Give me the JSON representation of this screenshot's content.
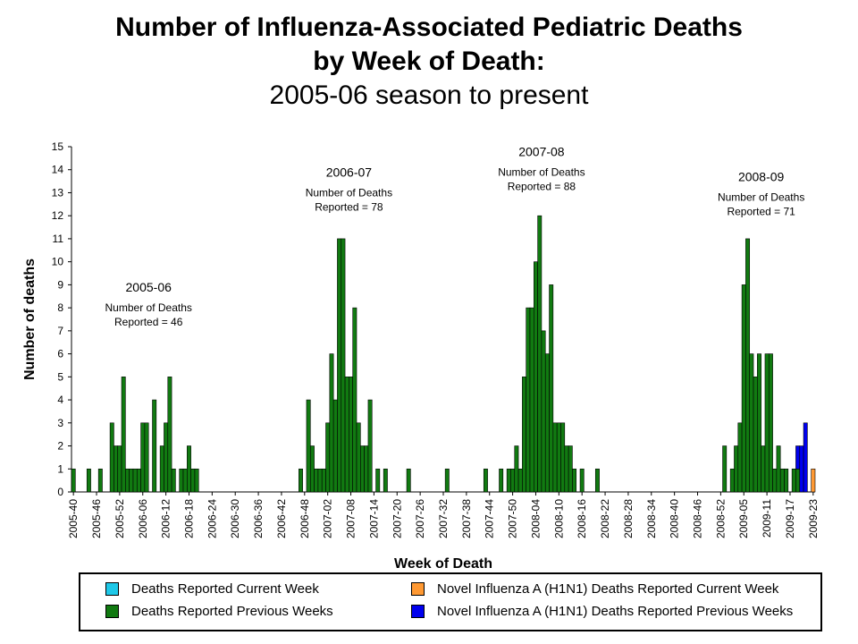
{
  "chart_data": {
    "type": "bar",
    "title": "Number of Influenza-Associated Pediatric Deaths",
    "title_line2": "by Week of Death:",
    "subtitle": "2005-06 season to present",
    "xlabel": "Week of Death",
    "ylabel": "Number of deaths",
    "ylim": [
      0,
      15
    ],
    "yticks": [
      0,
      1,
      2,
      3,
      4,
      5,
      6,
      7,
      8,
      9,
      10,
      11,
      12,
      13,
      14,
      15
    ],
    "start_week": "2005-40",
    "num_weeks": 193,
    "tick_labels": [
      "2005-40",
      "2005-46",
      "2005-52",
      "2006-06",
      "2006-12",
      "2006-18",
      "2006-24",
      "2006-30",
      "2006-36",
      "2006-42",
      "2006-48",
      "2007-02",
      "2007-08",
      "2007-14",
      "2007-20",
      "2007-26",
      "2007-32",
      "2007-38",
      "2007-44",
      "2007-50",
      "2008-04",
      "2008-10",
      "2008-16",
      "2008-22",
      "2008-28",
      "2008-34",
      "2008-40",
      "2008-46",
      "2008-52",
      "2009-05",
      "2009-11",
      "2009-17",
      "2009-23"
    ],
    "series": [
      {
        "name": "Deaths Reported Current Week",
        "color": "#1ec8e8",
        "values": []
      },
      {
        "name": "Deaths Reported Previous Weeks",
        "color": "#117a11",
        "values": [
          1,
          0,
          0,
          0,
          1,
          0,
          0,
          1,
          0,
          0,
          3,
          2,
          2,
          5,
          1,
          1,
          1,
          1,
          3,
          3,
          0,
          4,
          0,
          2,
          3,
          5,
          1,
          0,
          1,
          1,
          2,
          1,
          1,
          0,
          0,
          0,
          0,
          0,
          0,
          0,
          0,
          0,
          0,
          0,
          0,
          0,
          0,
          0,
          0,
          0,
          0,
          0,
          0,
          0,
          0,
          0,
          0,
          0,
          0,
          1,
          0,
          4,
          2,
          1,
          1,
          1,
          3,
          6,
          4,
          11,
          11,
          5,
          5,
          8,
          3,
          2,
          2,
          4,
          0,
          1,
          0,
          1,
          0,
          0,
          0,
          0,
          0,
          1,
          0,
          0,
          0,
          0,
          0,
          0,
          0,
          0,
          0,
          1,
          0,
          0,
          0,
          0,
          0,
          0,
          0,
          0,
          0,
          1,
          0,
          0,
          0,
          1,
          0,
          1,
          1,
          2,
          1,
          5,
          8,
          8,
          10,
          12,
          7,
          6,
          9,
          3,
          3,
          3,
          2,
          2,
          1,
          0,
          1,
          0,
          0,
          0,
          1,
          0,
          0,
          0,
          0,
          0,
          0,
          0,
          0,
          0,
          0,
          0,
          0,
          0,
          0,
          0,
          0,
          0,
          0,
          0,
          0,
          0,
          0,
          0,
          0,
          0,
          0,
          0,
          0,
          0,
          0,
          0,
          0,
          2,
          0,
          1,
          2,
          3,
          9,
          11,
          6,
          5,
          6,
          2,
          6,
          6,
          1,
          2,
          1,
          1,
          0,
          1,
          1,
          0,
          0,
          0,
          0
        ]
      },
      {
        "name": "Novel Influenza A (H1N1) Deaths Reported Current Week",
        "color": "#ff9933",
        "values": [
          0,
          0,
          0,
          0,
          0,
          0,
          0,
          0,
          0,
          0,
          0,
          0,
          0,
          0,
          0,
          0,
          0,
          0,
          0,
          0,
          0,
          0,
          0,
          0,
          0,
          0,
          0,
          0,
          0,
          0,
          0,
          0,
          0,
          0,
          0,
          0,
          0,
          0,
          0,
          0,
          0,
          0,
          0,
          0,
          0,
          0,
          0,
          0,
          0,
          0,
          0,
          0,
          0,
          0,
          0,
          0,
          0,
          0,
          0,
          0,
          0,
          0,
          0,
          0,
          0,
          0,
          0,
          0,
          0,
          0,
          0,
          0,
          0,
          0,
          0,
          0,
          0,
          0,
          0,
          0,
          0,
          0,
          0,
          0,
          0,
          0,
          0,
          0,
          0,
          0,
          0,
          0,
          0,
          0,
          0,
          0,
          0,
          0,
          0,
          0,
          0,
          0,
          0,
          0,
          0,
          0,
          0,
          0,
          0,
          0,
          0,
          0,
          0,
          0,
          0,
          0,
          0,
          0,
          0,
          0,
          0,
          0,
          0,
          0,
          0,
          0,
          0,
          0,
          0,
          0,
          0,
          0,
          0,
          0,
          0,
          0,
          0,
          0,
          0,
          0,
          0,
          0,
          0,
          0,
          0,
          0,
          0,
          0,
          0,
          0,
          0,
          0,
          0,
          0,
          0,
          0,
          0,
          0,
          0,
          0,
          0,
          0,
          0,
          0,
          0,
          0,
          0,
          0,
          0,
          0,
          0,
          0,
          0,
          0,
          0,
          0,
          0,
          0,
          0,
          0,
          0,
          0,
          0,
          0,
          0,
          0,
          0,
          0,
          0,
          0,
          0,
          0,
          1
        ]
      },
      {
        "name": "Novel Influenza A (H1N1) Deaths Reported Previous Weeks",
        "color": "#0000ee",
        "values": [
          0,
          0,
          0,
          0,
          0,
          0,
          0,
          0,
          0,
          0,
          0,
          0,
          0,
          0,
          0,
          0,
          0,
          0,
          0,
          0,
          0,
          0,
          0,
          0,
          0,
          0,
          0,
          0,
          0,
          0,
          0,
          0,
          0,
          0,
          0,
          0,
          0,
          0,
          0,
          0,
          0,
          0,
          0,
          0,
          0,
          0,
          0,
          0,
          0,
          0,
          0,
          0,
          0,
          0,
          0,
          0,
          0,
          0,
          0,
          0,
          0,
          0,
          0,
          0,
          0,
          0,
          0,
          0,
          0,
          0,
          0,
          0,
          0,
          0,
          0,
          0,
          0,
          0,
          0,
          0,
          0,
          0,
          0,
          0,
          0,
          0,
          0,
          0,
          0,
          0,
          0,
          0,
          0,
          0,
          0,
          0,
          0,
          0,
          0,
          0,
          0,
          0,
          0,
          0,
          0,
          0,
          0,
          0,
          0,
          0,
          0,
          0,
          0,
          0,
          0,
          0,
          0,
          0,
          0,
          0,
          0,
          0,
          0,
          0,
          0,
          0,
          0,
          0,
          0,
          0,
          0,
          0,
          0,
          0,
          0,
          0,
          0,
          0,
          0,
          0,
          0,
          0,
          0,
          0,
          0,
          0,
          0,
          0,
          0,
          0,
          0,
          0,
          0,
          0,
          0,
          0,
          0,
          0,
          0,
          0,
          0,
          0,
          0,
          0,
          0,
          0,
          0,
          0,
          0,
          0,
          0,
          0,
          0,
          0,
          0,
          0,
          0,
          0,
          0,
          0,
          0,
          0,
          0,
          0,
          0,
          0,
          0,
          0,
          1,
          2,
          3,
          0,
          0
        ]
      }
    ],
    "annotations": [
      {
        "season": "2005-06",
        "text": "Number of Deaths",
        "text2": "Reported = 46",
        "week": 20,
        "level": 8.7
      },
      {
        "season": "2006-07",
        "text": "Number of Deaths",
        "text2": "Reported = 78",
        "week": 72,
        "level": 13.7
      },
      {
        "season": "2007-08",
        "text": "Number of Deaths",
        "text2": "Reported = 88",
        "week": 122,
        "level": 14.6
      },
      {
        "season": "2008-09",
        "text": "Number of Deaths",
        "text2": "Reported = 71",
        "week": 179,
        "level": 13.5
      }
    ]
  }
}
